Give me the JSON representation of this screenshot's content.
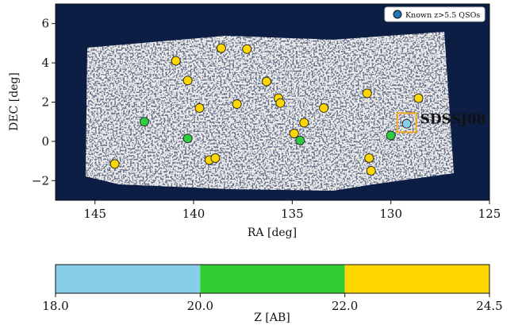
{
  "chart_data": [
    {
      "type": "scatter",
      "xlabel": "RA [deg]",
      "ylabel": "DEC [deg]",
      "xlim": [
        147,
        125
      ],
      "ylim": [
        -3,
        7
      ],
      "xticks": [
        145,
        140,
        135,
        130,
        125
      ],
      "xtick_labels": [
        "145",
        "140",
        "135",
        "130",
        "125"
      ],
      "yticks": [
        -2,
        0,
        2,
        4,
        6
      ],
      "ytick_labels": [
        "−2",
        "0",
        "2",
        "4",
        "6"
      ],
      "background_color": "#0d1e45",
      "footprint_color": "#d9d9d9",
      "legend": {
        "position": "top-right",
        "label": "Known z>5.5 QSOs",
        "marker_color": "#1f77b4"
      },
      "highlight": {
        "ra": 129.2,
        "dec": 0.95,
        "label": "SDSSJ08",
        "color": "#f5a623"
      },
      "points": [
        {
          "ra": 144.0,
          "dec": -1.15,
          "color": "#ffd700"
        },
        {
          "ra": 142.5,
          "dec": 1.0,
          "color": "#2ecc40"
        },
        {
          "ra": 140.9,
          "dec": 4.1,
          "color": "#ffd700"
        },
        {
          "ra": 140.3,
          "dec": 3.1,
          "color": "#ffd700"
        },
        {
          "ra": 140.3,
          "dec": 0.15,
          "color": "#2ecc40"
        },
        {
          "ra": 139.7,
          "dec": 1.7,
          "color": "#ffd700"
        },
        {
          "ra": 139.2,
          "dec": -0.95,
          "color": "#ffd700"
        },
        {
          "ra": 138.9,
          "dec": -0.85,
          "color": "#ffd700"
        },
        {
          "ra": 138.6,
          "dec": 4.75,
          "color": "#ffd700"
        },
        {
          "ra": 137.8,
          "dec": 1.9,
          "color": "#ffd700"
        },
        {
          "ra": 137.3,
          "dec": 4.7,
          "color": "#ffd700"
        },
        {
          "ra": 136.3,
          "dec": 3.05,
          "color": "#ffd700"
        },
        {
          "ra": 135.7,
          "dec": 2.2,
          "color": "#ffd700"
        },
        {
          "ra": 135.6,
          "dec": 1.95,
          "color": "#ffd700"
        },
        {
          "ra": 134.9,
          "dec": 0.4,
          "color": "#ffd700"
        },
        {
          "ra": 134.6,
          "dec": 0.05,
          "color": "#2ecc40"
        },
        {
          "ra": 134.4,
          "dec": 0.95,
          "color": "#ffd700"
        },
        {
          "ra": 133.4,
          "dec": 1.7,
          "color": "#ffd700"
        },
        {
          "ra": 131.2,
          "dec": 2.45,
          "color": "#ffd700"
        },
        {
          "ra": 131.1,
          "dec": -0.85,
          "color": "#ffd700"
        },
        {
          "ra": 131.0,
          "dec": -1.5,
          "color": "#ffd700"
        },
        {
          "ra": 130.0,
          "dec": 0.3,
          "color": "#2ecc40"
        },
        {
          "ra": 129.2,
          "dec": 0.9,
          "color": "#87ceeb"
        },
        {
          "ra": 128.6,
          "dec": 2.2,
          "color": "#ffd700"
        }
      ]
    },
    {
      "type": "colorbar",
      "xlabel": "Z [AB]",
      "ticks": [
        18.0,
        20.0,
        22.0,
        24.5
      ],
      "tick_labels": [
        "18.0",
        "20.0",
        "22.0",
        "24.5"
      ],
      "bins": [
        {
          "from": 18.0,
          "to": 20.0,
          "color": "#87ceeb"
        },
        {
          "from": 20.0,
          "to": 22.0,
          "color": "#32cd32"
        },
        {
          "from": 22.0,
          "to": 24.5,
          "color": "#ffd700"
        }
      ]
    }
  ]
}
